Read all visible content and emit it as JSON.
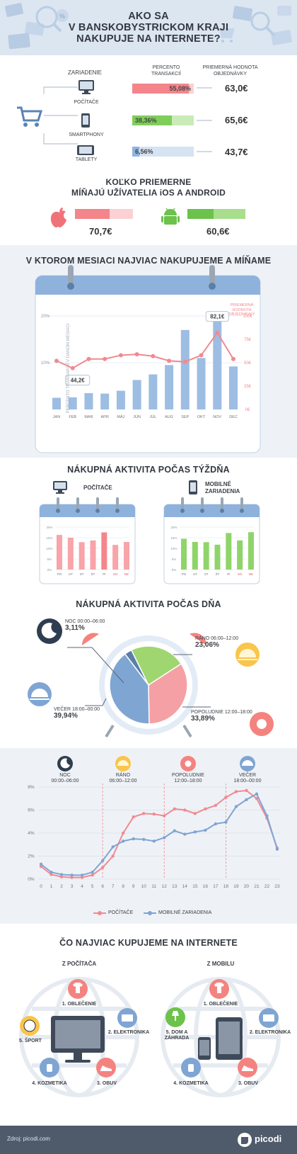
{
  "header": {
    "title_lines": [
      "AKO SA",
      "V BANSKOBYSTRICKOM KRAJI",
      "NAKUPUJE NA INTERNETE?"
    ]
  },
  "devices": {
    "col_device": "ZARIADENIE",
    "col_percent": "PERCENTO TRANSAKCIÍ",
    "col_avg": "PRIEMERNÁ HODNOTA OBJEDNÁVKY",
    "rows": [
      {
        "name": "POČÍTAČE",
        "percent": "55,08%",
        "fraction": 0.5508,
        "avg": "63,0€",
        "color": "#f3858b"
      },
      {
        "name": "SMARTPHONY",
        "percent": "38,36%",
        "fraction": 0.3836,
        "avg": "65,6€",
        "color": "#7fce5a"
      },
      {
        "name": "TABLETY",
        "percent": "6,56%",
        "fraction": 0.0656,
        "avg": "43,7€",
        "color": "#8fb5e0"
      }
    ]
  },
  "ios_android": {
    "title_lines": [
      "KOĽKO PRIEMERNE",
      "MÍŇAJÚ UŽÍVATELIA iOS A ANDROID"
    ],
    "ios_value": "70,7€",
    "ios_fraction": 0.6,
    "android_value": "60,6€",
    "android_fraction": 0.45
  },
  "monthly": {
    "title": "V KTOROM MESIACI NAJVIAC NAKUPUJEME A MÍŇAME",
    "left_axis_label": "PERCENTO TRANSAKCIÍ V DANOM MESIACI",
    "right_axis_label": [
      "PRIEMERNÁ",
      "HODNOTA",
      "OBJEDNÁVKY"
    ],
    "callout_min": "44,2€",
    "callout_max": "82,1€"
  },
  "weekly": {
    "title": "NÁKUPNÁ AKTIVITA POČAS TÝŽDŇA",
    "pc_label": "POČÍTAČE",
    "mobile_label": [
      "MOBILNÉ",
      "ZARIADENIA"
    ]
  },
  "daily": {
    "title": "NÁKUPNÁ AKTIVITA POČAS DŇA",
    "segments": [
      {
        "label": "NOC 00:00–06:00",
        "value": "3,11%",
        "fraction": 0.0311,
        "color": "#5a7fa8"
      },
      {
        "label": "RÁNO 06:00–12:00",
        "value": "23,06%",
        "fraction": 0.2306,
        "color": "#9fd66f"
      },
      {
        "label": "POPOLUDNIE 12:00–18:00",
        "value": "33,89%",
        "fraction": 0.3389,
        "color": "#f5a0a4"
      },
      {
        "label": "VEČER 18:00–00:00",
        "value": "39,94%",
        "fraction": 0.3994,
        "color": "#7fa5d3"
      }
    ]
  },
  "hourly": {
    "periods": [
      {
        "name": "NOC",
        "time": "00:00–06:00"
      },
      {
        "name": "RÁNO",
        "time": "06:00–12:00"
      },
      {
        "name": "POPOLUDNIE",
        "time": "12:00–18:00"
      },
      {
        "name": "VEČER",
        "time": "18:00–00:00"
      }
    ],
    "legend_pc": "POČÍTAČE",
    "legend_mobile": "MOBILNÉ ZARIADENIA"
  },
  "categories": {
    "title": "ČO NAJVIAC KUPUJEME NA INTERNETE",
    "pc": {
      "heading": "Z POČÍTAČA",
      "items": [
        "1. OBLEČENIE",
        "2. ELEKTRONIKA",
        "3. OBUV",
        "4. KOZMETIKA",
        "5. ŠPORT"
      ]
    },
    "mobile": {
      "heading": "Z MOBILU",
      "items": [
        "1. OBLEČENIE",
        "2. ELEKTRONIKA",
        "3. OBUV",
        "4. KOZMETIKA",
        "5. DOM A ZÁHRADA"
      ]
    }
  },
  "footer": {
    "source": "Zdroj: picodi.com",
    "brand": "picodi"
  },
  "chart_data": [
    {
      "type": "bar",
      "title": "V KTOROM MESIACI NAJVIAC NAKUPUJEME A MÍŇAME",
      "categories": [
        "JAN",
        "FEB",
        "MAR",
        "APR",
        "MÁJ",
        "JÚN",
        "JÚL",
        "AUG",
        "SEP",
        "OKT",
        "NOV",
        "DEC"
      ],
      "series": [
        {
          "name": "PERCENTO TRANSAKCIÍ V DANOM MESIACI",
          "values": [
            2.5,
            2.6,
            3.5,
            3.4,
            4.0,
            6.3,
            7.5,
            9.5,
            17.0,
            11.0,
            20.0,
            9.2
          ],
          "axis": "left",
          "color": "#9dbde3"
        },
        {
          "name": "PRIEMERNÁ HODNOTA OBJEDNÁVKY",
          "values": [
            52,
            44.2,
            54,
            54,
            58,
            59,
            57,
            52,
            51,
            58,
            82.1,
            54
          ],
          "axis": "right",
          "color": "#f08a90"
        }
      ],
      "ylim_left": [
        0,
        20
      ],
      "left_ticks": [
        "10%",
        "20%"
      ],
      "ylim_right": [
        0,
        100
      ],
      "right_ticks": [
        "0€",
        "25€",
        "50€",
        "75€",
        "100€"
      ]
    },
    {
      "type": "bar",
      "title": "POČÍTAČE",
      "categories": [
        "PO",
        "UT",
        "ST",
        "ŠT",
        "PI",
        "SO",
        "NE"
      ],
      "values": [
        16.3,
        15.0,
        12.9,
        13.7,
        17.5,
        11.6,
        13.0
      ],
      "ylim": [
        0,
        20
      ],
      "ticks": [
        "0%",
        "5%",
        "10%",
        "15%",
        "20%"
      ],
      "weekend_color": "#e8555c"
    },
    {
      "type": "bar",
      "title": "MOBILNÉ ZARIADENIA",
      "categories": [
        "PO",
        "UT",
        "ST",
        "ŠT",
        "PI",
        "SO",
        "NE"
      ],
      "values": [
        14.5,
        13.0,
        12.9,
        11.7,
        17.2,
        13.7,
        17.6
      ],
      "ylim": [
        0,
        20
      ],
      "ticks": [
        "0%",
        "5%",
        "10%",
        "15%",
        "20%"
      ],
      "weekend_color": "#e8555c"
    },
    {
      "type": "pie",
      "title": "NÁKUPNÁ AKTIVITA POČAS DŇA",
      "labels": [
        "NOC 00:00–06:00",
        "RÁNO 06:00–12:00",
        "POPOLUDNIE 12:00–18:00",
        "VEČER 18:00–00:00"
      ],
      "values": [
        3.11,
        23.06,
        33.89,
        39.94
      ]
    },
    {
      "type": "line",
      "x": [
        0,
        1,
        2,
        3,
        4,
        5,
        6,
        7,
        8,
        9,
        10,
        11,
        12,
        13,
        14,
        15,
        16,
        17,
        18,
        19,
        20,
        21,
        22,
        23
      ],
      "series": [
        {
          "name": "POČÍTAČE",
          "values": [
            1.1,
            0.4,
            0.2,
            0.15,
            0.15,
            0.35,
            1.0,
            2.0,
            4.0,
            5.4,
            5.7,
            5.65,
            5.5,
            6.1,
            6.0,
            5.7,
            6.1,
            6.4,
            7.1,
            7.6,
            7.7,
            7.0,
            5.3,
            2.7
          ],
          "color": "#f08a90"
        },
        {
          "name": "MOBILNÉ ZARIADENIA",
          "values": [
            1.3,
            0.6,
            0.4,
            0.35,
            0.35,
            0.6,
            1.6,
            2.8,
            3.3,
            3.5,
            3.45,
            3.3,
            3.6,
            4.2,
            3.9,
            4.1,
            4.25,
            4.8,
            4.95,
            6.3,
            6.9,
            7.4,
            5.5,
            2.6
          ],
          "color": "#7fa5d3"
        }
      ],
      "ylim": [
        0,
        8
      ],
      "ticks": [
        "0%",
        "2%",
        "4%",
        "6%",
        "8%"
      ],
      "x_ticks": [
        "0",
        "1",
        "2",
        "3",
        "4",
        "5",
        "6",
        "7",
        "8",
        "9",
        "10",
        "11",
        "12",
        "13",
        "14",
        "15",
        "16",
        "17",
        "18",
        "19",
        "20",
        "21",
        "22",
        "23"
      ]
    }
  ]
}
